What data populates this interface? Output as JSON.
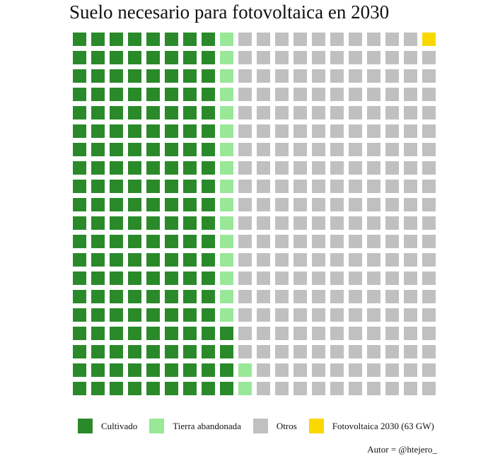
{
  "chart_data": {
    "type": "waffle",
    "title": "Suelo necesario para fotovoltaica en 2030",
    "grid": {
      "rows": 20,
      "cols": 20,
      "fill_order": "column-major-bottom-to-top"
    },
    "series": [
      {
        "name": "Cultivado",
        "value": 164,
        "color": "#2a8a2a"
      },
      {
        "name": "Tierra abandonada",
        "value": 18,
        "color": "#98e898"
      },
      {
        "name": "Otros",
        "value": 217,
        "color": "#c0c0c0"
      },
      {
        "name": "Fotovoltaica 2030 (63 GW)",
        "value": 1,
        "color": "#f9d800"
      }
    ],
    "legend_position": "bottom",
    "caption": "Autor = @htejero_"
  }
}
